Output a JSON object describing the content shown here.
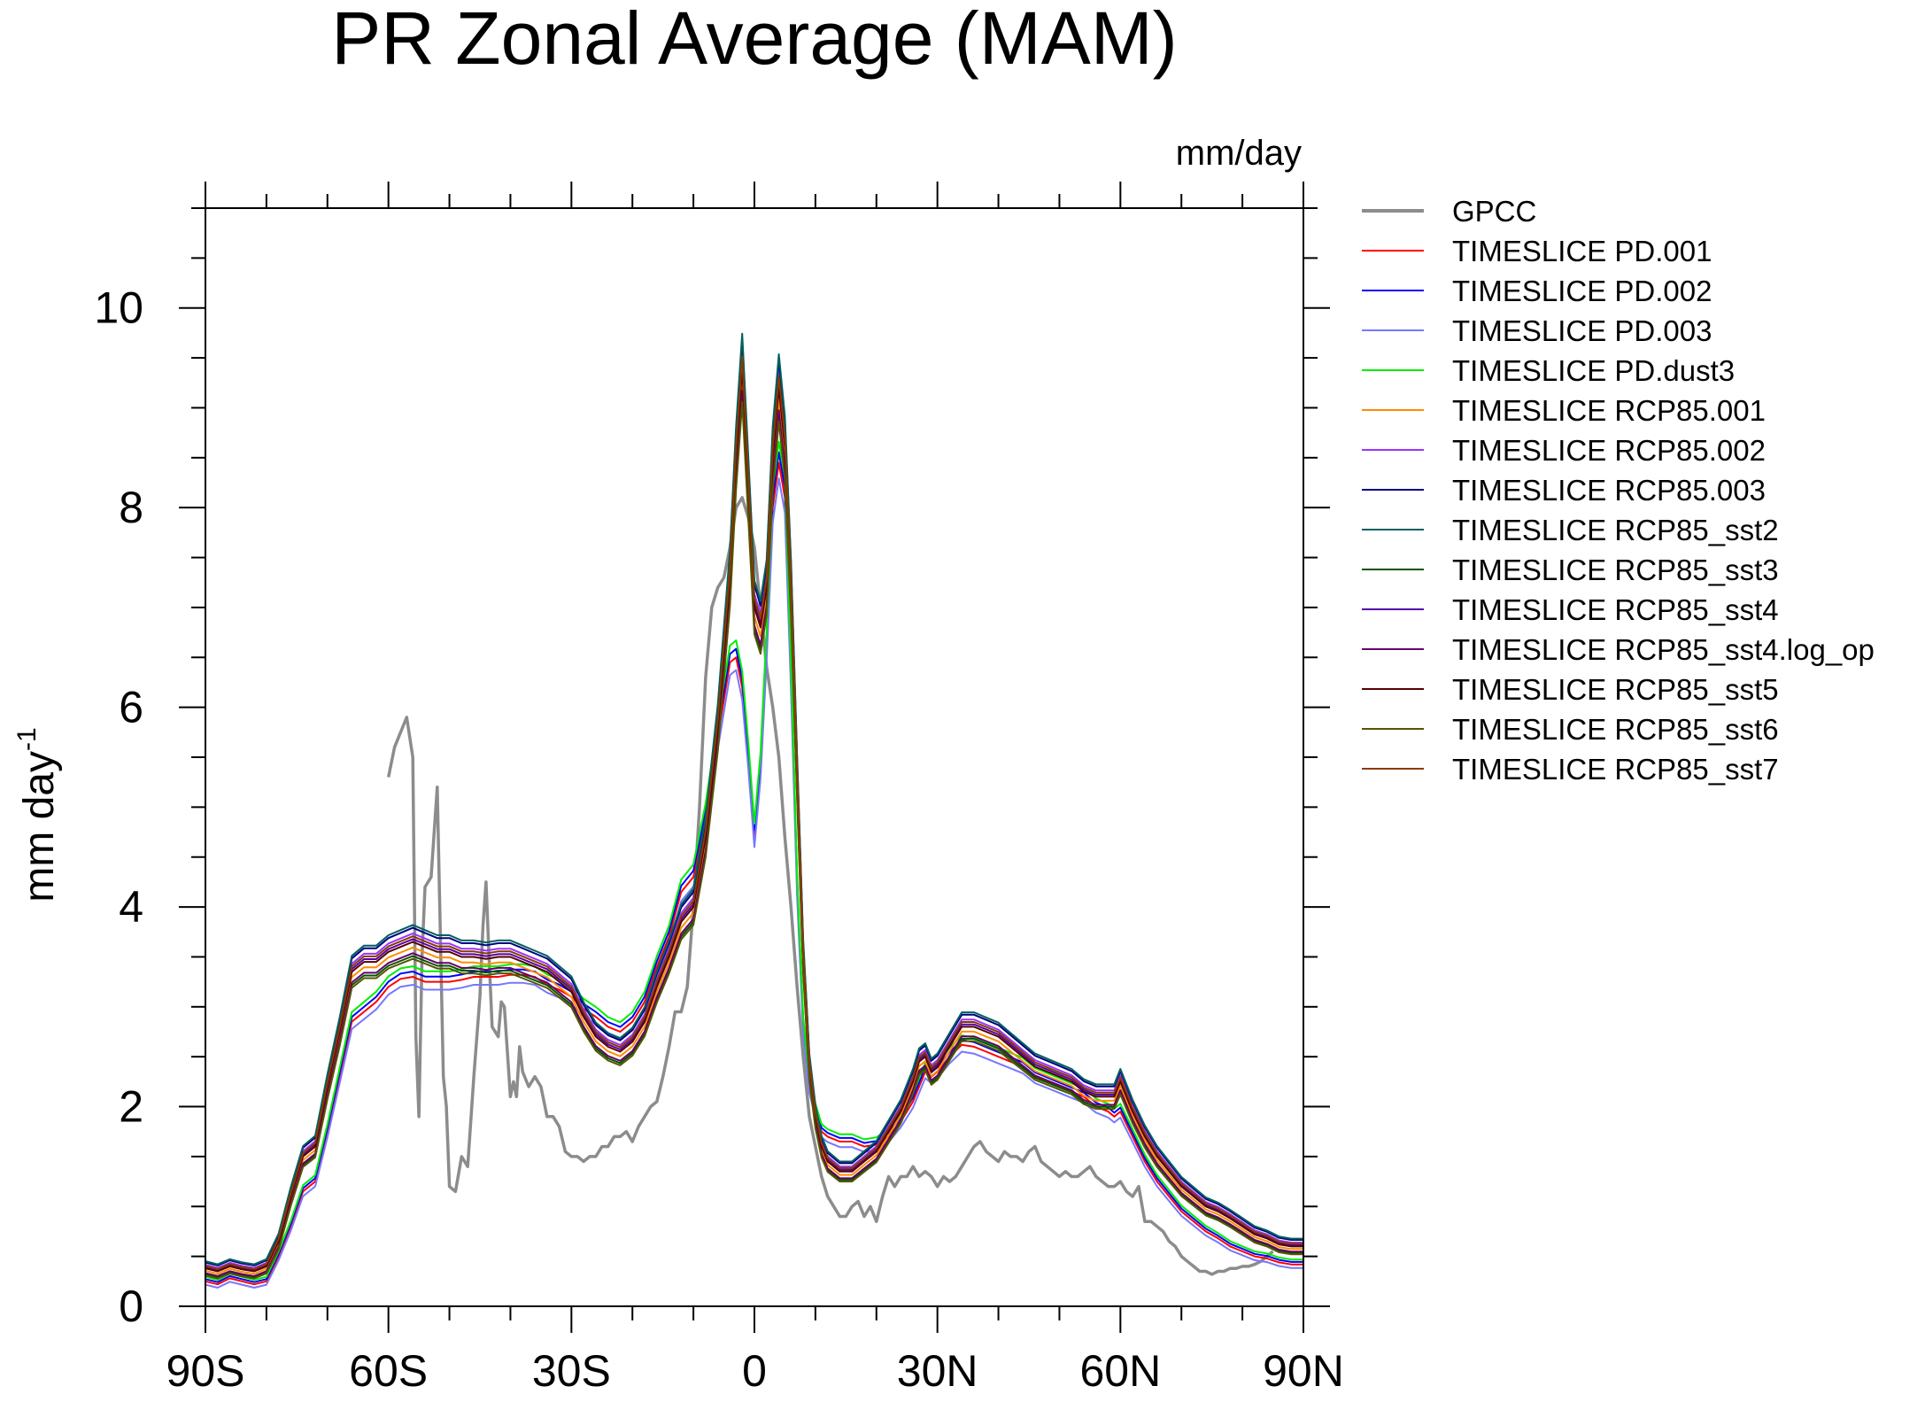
{
  "chart_data": {
    "type": "line",
    "title": "PR Zonal Average (MAM)",
    "units": "mm/day",
    "ylabel": "mm day",
    "ylabel_sup": "-1",
    "xlabel": "",
    "xlim": [
      -90,
      90
    ],
    "ylim": [
      0,
      11
    ],
    "xticks": [
      {
        "value": -90,
        "label": "90S"
      },
      {
        "value": -60,
        "label": "60S"
      },
      {
        "value": -30,
        "label": "30S"
      },
      {
        "value": 0,
        "label": "0"
      },
      {
        "value": 30,
        "label": "30N"
      },
      {
        "value": 60,
        "label": "60N"
      },
      {
        "value": 90,
        "label": "90N"
      }
    ],
    "yticks": [
      {
        "value": 0,
        "label": "0"
      },
      {
        "value": 2,
        "label": "2"
      },
      {
        "value": 4,
        "label": "4"
      },
      {
        "value": 6,
        "label": "6"
      },
      {
        "value": 8,
        "label": "8"
      },
      {
        "value": 10,
        "label": "10"
      }
    ],
    "grid": false,
    "legend_position": "right",
    "series": [
      {
        "name": "GPCC",
        "color": "#8c8c8c",
        "width": 3.5,
        "group": "obs",
        "x": [
          -60,
          -59,
          -57,
          -56,
          -55.5,
          -55,
          -54.5,
          -54,
          -53,
          -52,
          -51,
          -50.5,
          -50,
          -49,
          -48,
          -47,
          -46,
          -45,
          -44.5,
          -44,
          -43.5,
          -43,
          -42,
          -41.5,
          -41,
          -40,
          -39.5,
          -39,
          -38.5,
          -38,
          -37,
          -36,
          -35,
          -34,
          -33,
          -32,
          -31,
          -30,
          -29,
          -28,
          -27,
          -26,
          -25,
          -24,
          -23,
          -22,
          -21,
          -20,
          -19,
          -18,
          -17,
          -16,
          -15,
          -14,
          -13,
          -12,
          -11,
          -10,
          -9,
          -8,
          -7,
          -6,
          -5,
          -4,
          -3,
          -2,
          -1,
          0,
          1,
          2,
          3,
          4,
          5,
          6,
          7,
          8,
          9,
          10,
          11,
          12,
          13,
          14,
          15,
          16,
          17,
          18,
          19,
          20,
          21,
          22,
          23,
          24,
          25,
          26,
          27,
          28,
          29,
          30,
          31,
          32,
          33,
          34,
          35,
          36,
          37,
          38,
          39,
          40,
          41,
          42,
          43,
          44,
          45,
          46,
          47,
          48,
          49,
          50,
          51,
          52,
          53,
          54,
          55,
          56,
          57,
          58,
          59,
          60,
          61,
          62,
          63,
          64,
          65,
          66,
          67,
          68,
          69,
          70,
          71,
          72,
          73,
          74,
          75,
          76,
          77,
          78,
          79,
          80,
          81,
          82,
          83,
          84,
          85
        ],
        "y": [
          5.3,
          5.6,
          5.9,
          5.5,
          2.7,
          1.9,
          3.5,
          4.2,
          4.3,
          5.2,
          2.3,
          2.0,
          1.2,
          1.15,
          1.5,
          1.4,
          2.3,
          3.1,
          3.8,
          4.25,
          3.5,
          2.8,
          2.7,
          3.05,
          3.0,
          2.1,
          2.25,
          2.1,
          2.6,
          2.35,
          2.2,
          2.3,
          2.2,
          1.9,
          1.9,
          1.8,
          1.55,
          1.5,
          1.5,
          1.45,
          1.5,
          1.5,
          1.6,
          1.6,
          1.7,
          1.7,
          1.75,
          1.65,
          1.8,
          1.9,
          2.0,
          2.05,
          2.3,
          2.6,
          2.95,
          2.95,
          3.2,
          4.0,
          5.0,
          6.3,
          7.0,
          7.2,
          7.3,
          7.6,
          8.0,
          8.1,
          7.9,
          7.6,
          7.0,
          6.4,
          6.0,
          5.5,
          4.7,
          4.0,
          3.2,
          2.5,
          1.9,
          1.6,
          1.3,
          1.1,
          1.0,
          0.9,
          0.9,
          1.0,
          1.05,
          0.9,
          1.0,
          0.85,
          1.1,
          1.3,
          1.2,
          1.3,
          1.3,
          1.4,
          1.3,
          1.35,
          1.3,
          1.2,
          1.3,
          1.25,
          1.3,
          1.4,
          1.5,
          1.6,
          1.65,
          1.55,
          1.5,
          1.45,
          1.55,
          1.5,
          1.5,
          1.45,
          1.55,
          1.6,
          1.45,
          1.4,
          1.35,
          1.3,
          1.35,
          1.3,
          1.3,
          1.35,
          1.4,
          1.3,
          1.25,
          1.2,
          1.2,
          1.25,
          1.15,
          1.1,
          1.2,
          0.85,
          0.85,
          0.8,
          0.75,
          0.65,
          0.6,
          0.5,
          0.45,
          0.4,
          0.35,
          0.35,
          0.32,
          0.35,
          0.35,
          0.38,
          0.38,
          0.4,
          0.4,
          0.42,
          0.45,
          0.5,
          0.55
        ]
      },
      {
        "name": "TIMESLICE PD.001",
        "color": "#ff0000",
        "width": 2,
        "group": "pd",
        "offset": 0.0
      },
      {
        "name": "TIMESLICE PD.002",
        "color": "#0000ff",
        "width": 2,
        "group": "pd",
        "offset": 0.02
      },
      {
        "name": "TIMESLICE PD.003",
        "color": "#7777ff",
        "width": 2,
        "group": "pd",
        "offset": -0.03
      },
      {
        "name": "TIMESLICE PD.dust3",
        "color": "#00ee00",
        "width": 2,
        "group": "pd",
        "offset": 0.04
      },
      {
        "name": "TIMESLICE RCP85.001",
        "color": "#ff8c00",
        "width": 2,
        "group": "rcp",
        "offset": -0.02
      },
      {
        "name": "TIMESLICE RCP85.002",
        "color": "#9933ff",
        "width": 2,
        "group": "rcp",
        "offset": 0.03
      },
      {
        "name": "TIMESLICE RCP85.003",
        "color": "#000080",
        "width": 2,
        "group": "rcp",
        "offset": 0.05
      },
      {
        "name": "TIMESLICE RCP85_sst2",
        "color": "#006060",
        "width": 2,
        "group": "rcp",
        "offset": 0.06
      },
      {
        "name": "TIMESLICE RCP85_sst3",
        "color": "#005500",
        "width": 2,
        "group": "rcp",
        "offset": -0.05
      },
      {
        "name": "TIMESLICE RCP85_sst4",
        "color": "#5500aa",
        "width": 2,
        "group": "rcp",
        "offset": 0.01
      },
      {
        "name": "TIMESLICE RCP85_sst4.log_op",
        "color": "#660066",
        "width": 2,
        "group": "rcp",
        "offset": -0.04
      },
      {
        "name": "TIMESLICE RCP85_sst5",
        "color": "#550000",
        "width": 2,
        "group": "rcp",
        "offset": 0.0
      },
      {
        "name": "TIMESLICE RCP85_sst6",
        "color": "#555500",
        "width": 2,
        "group": "rcp",
        "offset": -0.06
      },
      {
        "name": "TIMESLICE RCP85_sst7",
        "color": "#8b3a00",
        "width": 2,
        "group": "rcp",
        "offset": 0.02
      }
    ],
    "group_profiles": {
      "pd": {
        "x": [
          -90,
          -88,
          -86,
          -84,
          -82,
          -80,
          -78,
          -76,
          -74,
          -72,
          -70,
          -68,
          -66,
          -64,
          -62,
          -60,
          -58,
          -56,
          -54,
          -52,
          -50,
          -48,
          -46,
          -44,
          -42,
          -40,
          -38,
          -36,
          -34,
          -32,
          -30,
          -28,
          -26,
          -24,
          -22,
          -20,
          -18,
          -16,
          -14,
          -12,
          -10,
          -8,
          -6,
          -4,
          -3,
          -2,
          -1,
          0,
          1,
          2,
          3,
          4,
          5,
          6,
          7,
          8,
          9,
          10,
          11,
          12,
          14,
          16,
          18,
          20,
          22,
          24,
          26,
          27,
          28,
          29,
          30,
          32,
          34,
          36,
          38,
          40,
          42,
          44,
          46,
          48,
          50,
          52,
          54,
          56,
          58,
          59,
          60,
          62,
          64,
          66,
          68,
          70,
          72,
          74,
          76,
          78,
          80,
          82,
          84,
          86,
          88,
          90
        ],
        "y": [
          0.25,
          0.22,
          0.28,
          0.25,
          0.22,
          0.25,
          0.5,
          0.8,
          1.15,
          1.25,
          1.75,
          2.3,
          2.85,
          2.95,
          3.05,
          3.2,
          3.28,
          3.3,
          3.25,
          3.25,
          3.25,
          3.27,
          3.3,
          3.3,
          3.3,
          3.32,
          3.32,
          3.3,
          3.22,
          3.17,
          3.1,
          2.98,
          2.9,
          2.8,
          2.75,
          2.85,
          3.05,
          3.4,
          3.7,
          4.15,
          4.3,
          4.9,
          5.7,
          6.45,
          6.5,
          6.2,
          5.5,
          4.7,
          5.4,
          6.6,
          8.0,
          8.45,
          8.1,
          6.3,
          4.2,
          2.8,
          2.2,
          1.95,
          1.75,
          1.7,
          1.65,
          1.65,
          1.6,
          1.62,
          1.7,
          1.85,
          2.05,
          2.2,
          2.35,
          2.3,
          2.35,
          2.5,
          2.62,
          2.6,
          2.55,
          2.5,
          2.45,
          2.4,
          2.3,
          2.25,
          2.2,
          2.15,
          2.1,
          2.0,
          1.95,
          1.9,
          1.95,
          1.7,
          1.45,
          1.25,
          1.1,
          0.95,
          0.85,
          0.75,
          0.68,
          0.6,
          0.55,
          0.5,
          0.48,
          0.44,
          0.42,
          0.42
        ]
      },
      "rcp": {
        "x": [
          -90,
          -88,
          -86,
          -84,
          -82,
          -80,
          -78,
          -76,
          -74,
          -72,
          -70,
          -68,
          -66,
          -64,
          -62,
          -60,
          -58,
          -56,
          -54,
          -52,
          -50,
          -48,
          -46,
          -44,
          -42,
          -40,
          -38,
          -36,
          -34,
          -32,
          -30,
          -28,
          -26,
          -24,
          -22,
          -20,
          -18,
          -16,
          -14,
          -12,
          -10,
          -8,
          -6,
          -4,
          -3,
          -2,
          -1,
          0,
          1,
          2,
          3,
          4,
          5,
          6,
          7,
          8,
          9,
          10,
          11,
          12,
          14,
          16,
          18,
          20,
          22,
          24,
          26,
          27,
          28,
          29,
          30,
          32,
          34,
          36,
          38,
          40,
          42,
          44,
          46,
          48,
          50,
          52,
          54,
          56,
          58,
          59,
          60,
          62,
          64,
          66,
          68,
          70,
          72,
          74,
          76,
          78,
          80,
          82,
          84,
          86,
          88,
          90
        ],
        "y": [
          0.38,
          0.35,
          0.4,
          0.37,
          0.35,
          0.4,
          0.65,
          1.1,
          1.5,
          1.6,
          2.2,
          2.75,
          3.35,
          3.45,
          3.45,
          3.55,
          3.6,
          3.65,
          3.6,
          3.55,
          3.55,
          3.5,
          3.5,
          3.48,
          3.5,
          3.5,
          3.45,
          3.4,
          3.35,
          3.25,
          3.15,
          2.9,
          2.7,
          2.6,
          2.55,
          2.65,
          2.85,
          3.2,
          3.5,
          3.85,
          4.0,
          4.7,
          5.8,
          7.3,
          8.5,
          9.4,
          8.2,
          7.0,
          6.8,
          7.2,
          8.5,
          9.2,
          8.6,
          7.2,
          5.3,
          3.5,
          2.4,
          1.9,
          1.6,
          1.45,
          1.35,
          1.35,
          1.45,
          1.55,
          1.75,
          1.95,
          2.25,
          2.45,
          2.5,
          2.35,
          2.4,
          2.6,
          2.8,
          2.8,
          2.75,
          2.7,
          2.6,
          2.5,
          2.4,
          2.35,
          2.3,
          2.25,
          2.15,
          2.1,
          2.1,
          2.1,
          2.25,
          1.95,
          1.7,
          1.5,
          1.35,
          1.2,
          1.1,
          1.0,
          0.95,
          0.88,
          0.8,
          0.72,
          0.68,
          0.62,
          0.6,
          0.6
        ]
      }
    }
  }
}
